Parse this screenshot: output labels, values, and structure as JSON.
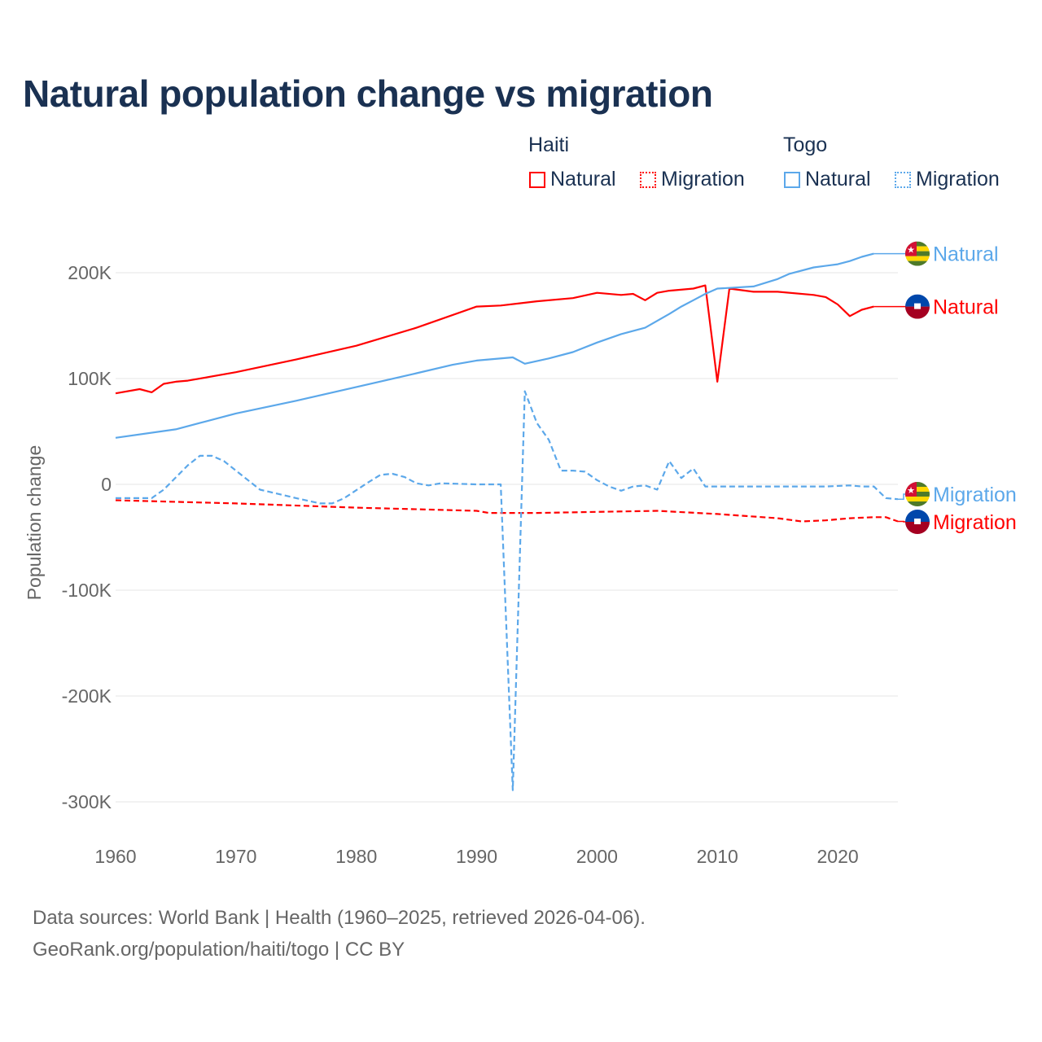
{
  "title": "Natural population change vs migration",
  "legend": {
    "groups": [
      {
        "name": "Haiti",
        "color": "#ff0000",
        "items": [
          "Natural",
          "Migration"
        ]
      },
      {
        "name": "Togo",
        "color": "#5ca8ea",
        "items": [
          "Natural",
          "Migration"
        ]
      }
    ]
  },
  "footer": {
    "line1": "Data sources: World Bank | Health (1960–2025, retrieved 2026-04-06).",
    "line2": "GeoRank.org/population/haiti/togo | CC BY"
  },
  "chart_data": {
    "type": "line",
    "title": "Natural population change vs migration",
    "xlabel": "",
    "ylabel": "Population change",
    "xlim": [
      1960,
      2025
    ],
    "ylim": [
      -300000,
      220000
    ],
    "x_ticks": [
      1960,
      1970,
      1980,
      1990,
      2000,
      2010,
      2020
    ],
    "y_ticks": [
      {
        "v": 200000,
        "label": "200K"
      },
      {
        "v": 100000,
        "label": "100K"
      },
      {
        "v": 0,
        "label": "0"
      },
      {
        "v": -100000,
        "label": "-100K"
      },
      {
        "v": -200000,
        "label": "-200K"
      },
      {
        "v": -300000,
        "label": "-300K"
      }
    ],
    "grid": true,
    "series": [
      {
        "name": "Natural",
        "country": "Haiti",
        "color": "#ff0000",
        "dash": false,
        "flag": "haiti",
        "end_label": "Natural",
        "points": [
          [
            1960,
            86
          ],
          [
            1962,
            90
          ],
          [
            1963,
            87
          ],
          [
            1964,
            95
          ],
          [
            1965,
            97
          ],
          [
            1966,
            98
          ],
          [
            1970,
            106
          ],
          [
            1975,
            118
          ],
          [
            1980,
            131
          ],
          [
            1985,
            148
          ],
          [
            1990,
            168
          ],
          [
            1992,
            169
          ],
          [
            1995,
            173
          ],
          [
            1998,
            176
          ],
          [
            2000,
            181
          ],
          [
            2002,
            179
          ],
          [
            2003,
            180
          ],
          [
            2004,
            174
          ],
          [
            2005,
            181
          ],
          [
            2006,
            183
          ],
          [
            2008,
            185
          ],
          [
            2009,
            188
          ],
          [
            2010,
            97
          ],
          [
            2011,
            185
          ],
          [
            2013,
            182
          ],
          [
            2015,
            182
          ],
          [
            2018,
            179
          ],
          [
            2019,
            177
          ],
          [
            2020,
            170
          ],
          [
            2021,
            159
          ],
          [
            2022,
            165
          ],
          [
            2023,
            168
          ]
        ]
      },
      {
        "name": "Migration",
        "country": "Haiti",
        "color": "#ff0000",
        "dash": true,
        "flag": "haiti",
        "end_label": "Migration",
        "points": [
          [
            1960,
            -15
          ],
          [
            1970,
            -18
          ],
          [
            1980,
            -22
          ],
          [
            1990,
            -25
          ],
          [
            1991,
            -27
          ],
          [
            1995,
            -27
          ],
          [
            2000,
            -26
          ],
          [
            2005,
            -25
          ],
          [
            2010,
            -28
          ],
          [
            2015,
            -32
          ],
          [
            2017,
            -35
          ],
          [
            2019,
            -34
          ],
          [
            2021,
            -32
          ],
          [
            2023,
            -31
          ],
          [
            2024,
            -31
          ],
          [
            2025,
            -35
          ]
        ]
      },
      {
        "name": "Natural",
        "country": "Togo",
        "color": "#5ca8ea",
        "dash": false,
        "flag": "togo",
        "end_label": "Natural",
        "points": [
          [
            1960,
            44
          ],
          [
            1965,
            52
          ],
          [
            1967,
            58
          ],
          [
            1970,
            67
          ],
          [
            1975,
            79
          ],
          [
            1980,
            92
          ],
          [
            1985,
            105
          ],
          [
            1988,
            113
          ],
          [
            1990,
            117
          ],
          [
            1993,
            120
          ],
          [
            1994,
            114
          ],
          [
            1996,
            119
          ],
          [
            1998,
            125
          ],
          [
            2000,
            134
          ],
          [
            2002,
            142
          ],
          [
            2004,
            148
          ],
          [
            2006,
            161
          ],
          [
            2007,
            168
          ],
          [
            2008,
            174
          ],
          [
            2009,
            180
          ],
          [
            2010,
            185
          ],
          [
            2013,
            187
          ],
          [
            2015,
            194
          ],
          [
            2016,
            199
          ],
          [
            2018,
            205
          ],
          [
            2020,
            208
          ],
          [
            2021,
            211
          ],
          [
            2022,
            215
          ],
          [
            2023,
            218
          ]
        ]
      },
      {
        "name": "Migration",
        "country": "Togo",
        "color": "#5ca8ea",
        "dash": true,
        "flag": "togo",
        "end_label": "Migration",
        "points": [
          [
            1960,
            -13
          ],
          [
            1963,
            -13
          ],
          [
            1964,
            -5
          ],
          [
            1966,
            18
          ],
          [
            1967,
            27
          ],
          [
            1968,
            27
          ],
          [
            1969,
            22
          ],
          [
            1970,
            13
          ],
          [
            1972,
            -5
          ],
          [
            1975,
            -13
          ],
          [
            1977,
            -18
          ],
          [
            1978,
            -18
          ],
          [
            1979,
            -13
          ],
          [
            1981,
            2
          ],
          [
            1982,
            9
          ],
          [
            1983,
            10
          ],
          [
            1984,
            7
          ],
          [
            1985,
            1
          ],
          [
            1986,
            -1
          ],
          [
            1987,
            1
          ],
          [
            1990,
            0
          ],
          [
            1992,
            0
          ],
          [
            1993,
            -289
          ],
          [
            1994,
            88
          ],
          [
            1995,
            58
          ],
          [
            1996,
            42
          ],
          [
            1997,
            13
          ],
          [
            1998,
            13
          ],
          [
            1999,
            12
          ],
          [
            2000,
            4
          ],
          [
            2001,
            -2
          ],
          [
            2002,
            -6
          ],
          [
            2003,
            -2
          ],
          [
            2004,
            -1
          ],
          [
            2005,
            -5
          ],
          [
            2006,
            22
          ],
          [
            2007,
            6
          ],
          [
            2008,
            15
          ],
          [
            2009,
            -2
          ],
          [
            2015,
            -2
          ],
          [
            2019,
            -2
          ],
          [
            2021,
            -1
          ],
          [
            2022,
            -2
          ],
          [
            2023,
            -2
          ],
          [
            2024,
            -13
          ],
          [
            2025,
            -14
          ]
        ]
      }
    ],
    "value_unit": "thousands"
  }
}
